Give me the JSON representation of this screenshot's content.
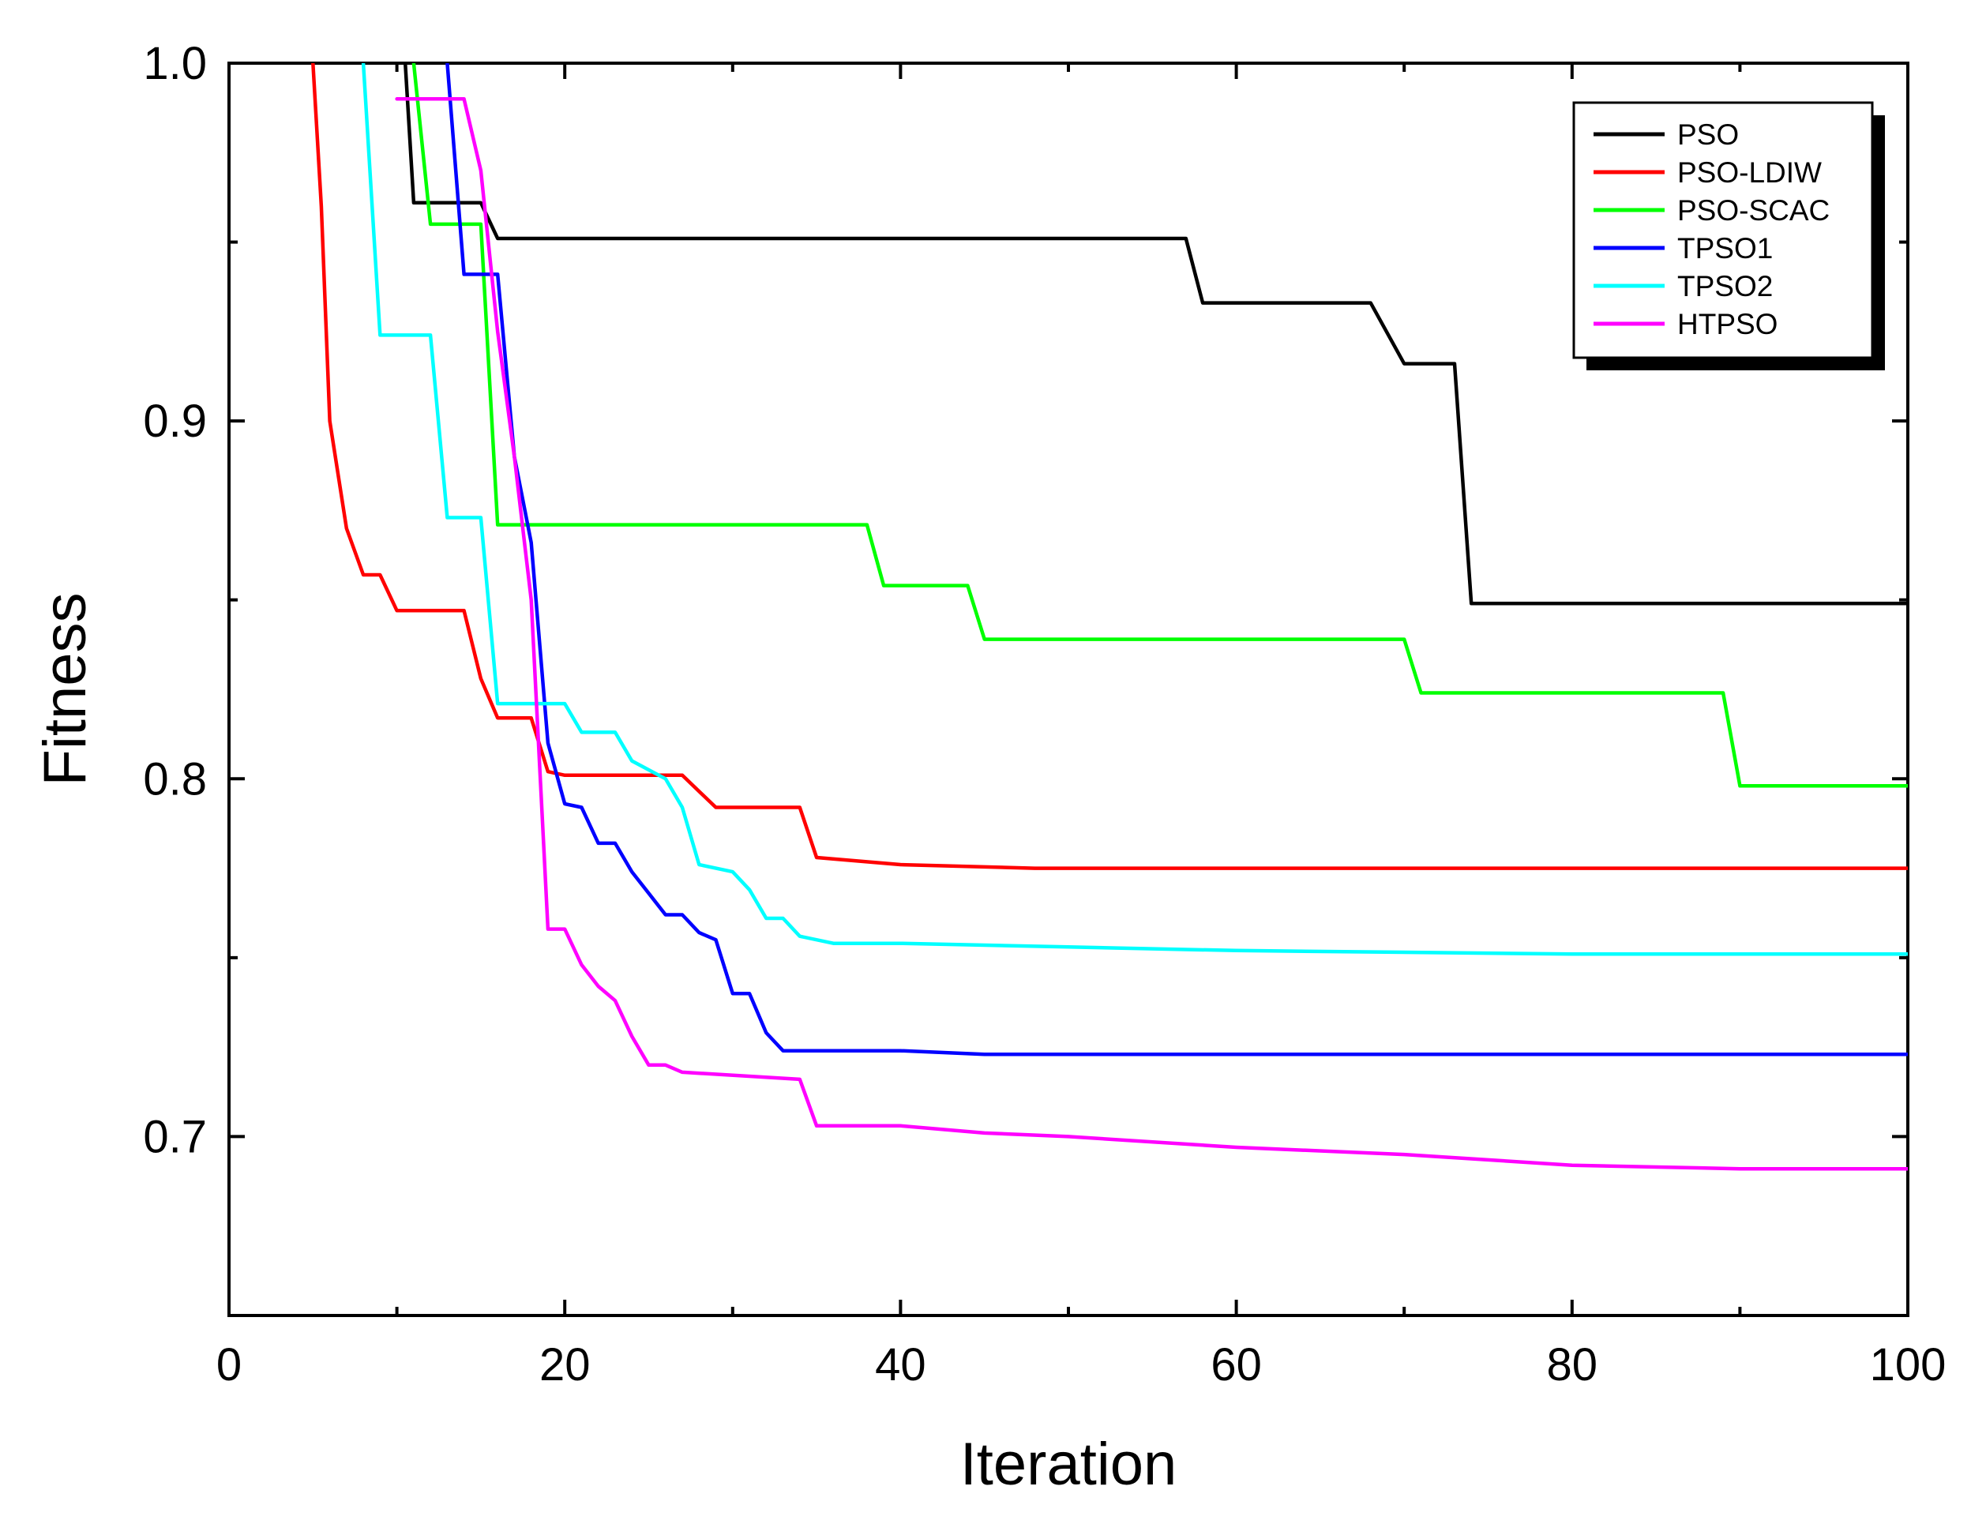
{
  "chart_data": {
    "type": "line",
    "title": "",
    "xlabel": "Iteration",
    "ylabel": "Fitness",
    "xlim": [
      0,
      100
    ],
    "ylim": [
      0.65,
      1.0
    ],
    "xticks": [
      0,
      20,
      40,
      60,
      80,
      100
    ],
    "xtick_labels": [
      "0",
      "20",
      "40",
      "60",
      "80",
      "100"
    ],
    "yticks": [
      0.7,
      0.8,
      0.9,
      1.0
    ],
    "ytick_labels": [
      "0.7",
      "0.8",
      "0.9",
      "1.0"
    ],
    "grid": false,
    "legend_position": "top-right",
    "series": [
      {
        "name": "PSO",
        "color": "#000000",
        "points": [
          [
            10.5,
            1.0
          ],
          [
            11,
            0.961
          ],
          [
            15,
            0.961
          ],
          [
            16,
            0.951
          ],
          [
            57,
            0.951
          ],
          [
            58,
            0.933
          ],
          [
            68,
            0.933
          ],
          [
            70,
            0.916
          ],
          [
            73,
            0.916
          ],
          [
            74,
            0.849
          ],
          [
            100,
            0.849
          ]
        ]
      },
      {
        "name": "PSO-LDIW",
        "color": "#ff0000",
        "points": [
          [
            5,
            1.0
          ],
          [
            5.5,
            0.96
          ],
          [
            6,
            0.9
          ],
          [
            7,
            0.87
          ],
          [
            8,
            0.857
          ],
          [
            9,
            0.857
          ],
          [
            10,
            0.847
          ],
          [
            14,
            0.847
          ],
          [
            15,
            0.828
          ],
          [
            16,
            0.817
          ],
          [
            18,
            0.817
          ],
          [
            19,
            0.802
          ],
          [
            20,
            0.801
          ],
          [
            27,
            0.801
          ],
          [
            29,
            0.792
          ],
          [
            34,
            0.792
          ],
          [
            35,
            0.778
          ],
          [
            40,
            0.776
          ],
          [
            48,
            0.775
          ],
          [
            100,
            0.775
          ]
        ]
      },
      {
        "name": "PSO-SCAC",
        "color": "#00ff00",
        "points": [
          [
            11,
            1.0
          ],
          [
            12,
            0.955
          ],
          [
            15,
            0.955
          ],
          [
            16,
            0.871
          ],
          [
            38,
            0.871
          ],
          [
            39,
            0.854
          ],
          [
            44,
            0.854
          ],
          [
            45,
            0.839
          ],
          [
            70,
            0.839
          ],
          [
            71,
            0.824
          ],
          [
            89,
            0.824
          ],
          [
            90,
            0.798
          ],
          [
            100,
            0.798
          ]
        ]
      },
      {
        "name": "TPSO1",
        "color": "#0000ff",
        "points": [
          [
            13,
            1.0
          ],
          [
            14,
            0.941
          ],
          [
            16,
            0.941
          ],
          [
            17,
            0.89
          ],
          [
            18,
            0.866
          ],
          [
            19,
            0.81
          ],
          [
            20,
            0.793
          ],
          [
            21,
            0.792
          ],
          [
            22,
            0.782
          ],
          [
            23,
            0.782
          ],
          [
            24,
            0.774
          ],
          [
            25,
            0.768
          ],
          [
            26,
            0.762
          ],
          [
            27,
            0.762
          ],
          [
            28,
            0.757
          ],
          [
            29,
            0.755
          ],
          [
            30,
            0.74
          ],
          [
            31,
            0.74
          ],
          [
            32,
            0.729
          ],
          [
            33,
            0.724
          ],
          [
            40,
            0.724
          ],
          [
            45,
            0.723
          ],
          [
            100,
            0.723
          ]
        ]
      },
      {
        "name": "TPSO2",
        "color": "#00ffff",
        "points": [
          [
            8,
            1.0
          ],
          [
            9,
            0.924
          ],
          [
            12,
            0.924
          ],
          [
            13,
            0.873
          ],
          [
            15,
            0.873
          ],
          [
            16,
            0.821
          ],
          [
            20,
            0.821
          ],
          [
            21,
            0.813
          ],
          [
            23,
            0.813
          ],
          [
            24,
            0.805
          ],
          [
            26,
            0.8
          ],
          [
            27,
            0.792
          ],
          [
            28,
            0.776
          ],
          [
            30,
            0.774
          ],
          [
            31,
            0.769
          ],
          [
            32,
            0.761
          ],
          [
            33,
            0.761
          ],
          [
            34,
            0.756
          ],
          [
            36,
            0.754
          ],
          [
            40,
            0.754
          ],
          [
            50,
            0.753
          ],
          [
            60,
            0.752
          ],
          [
            80,
            0.751
          ],
          [
            100,
            0.751
          ]
        ]
      },
      {
        "name": "HTPSO",
        "color": "#ff00ff",
        "points": [
          [
            10,
            0.99
          ],
          [
            14,
            0.99
          ],
          [
            15,
            0.97
          ],
          [
            16,
            0.925
          ],
          [
            17,
            0.89
          ],
          [
            18,
            0.85
          ],
          [
            19,
            0.758
          ],
          [
            20,
            0.758
          ],
          [
            21,
            0.748
          ],
          [
            22,
            0.742
          ],
          [
            23,
            0.738
          ],
          [
            24,
            0.728
          ],
          [
            25,
            0.72
          ],
          [
            26,
            0.72
          ],
          [
            27,
            0.718
          ],
          [
            34,
            0.716
          ],
          [
            35,
            0.703
          ],
          [
            40,
            0.703
          ],
          [
            45,
            0.701
          ],
          [
            50,
            0.7
          ],
          [
            60,
            0.697
          ],
          [
            70,
            0.695
          ],
          [
            80,
            0.692
          ],
          [
            90,
            0.691
          ],
          [
            100,
            0.691
          ]
        ]
      }
    ]
  }
}
